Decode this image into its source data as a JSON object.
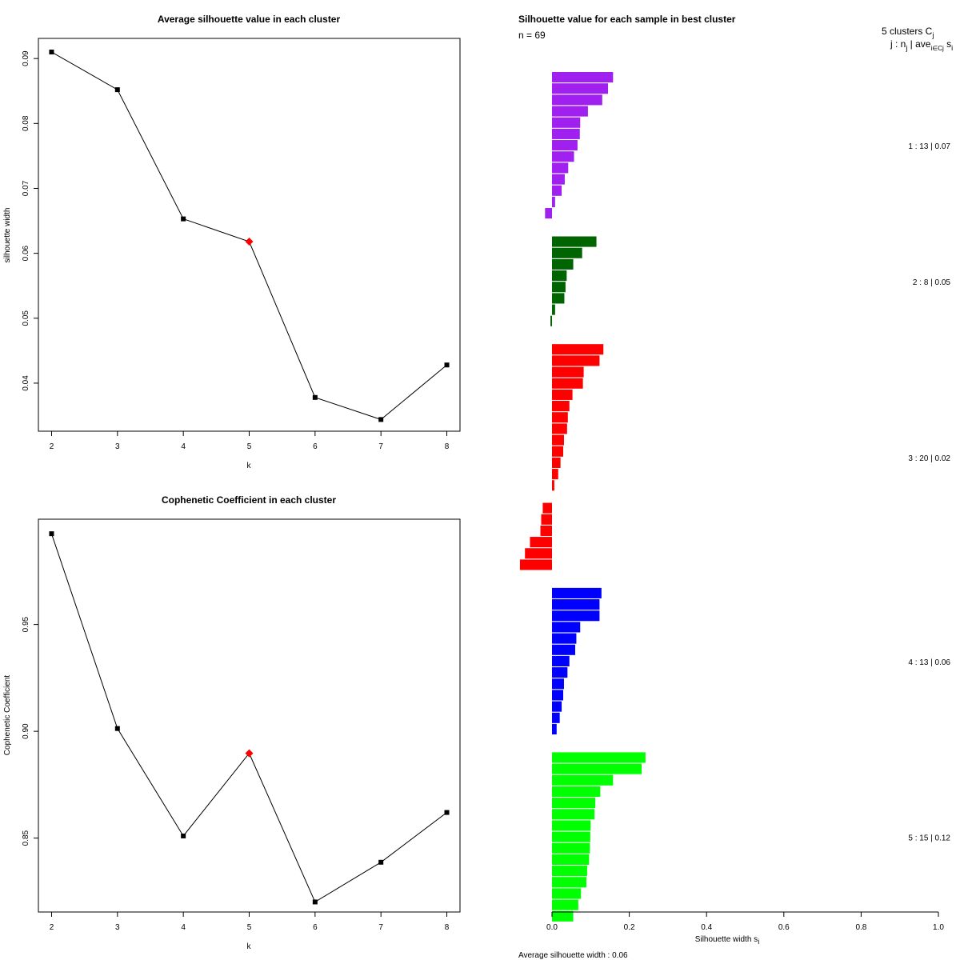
{
  "chart_data": [
    {
      "type": "line",
      "title": "Average silhouette value in each cluster",
      "xlabel": "k",
      "ylabel": "silhouette width",
      "x": [
        2,
        3,
        4,
        5,
        6,
        7,
        8
      ],
      "y": [
        0.091,
        0.0852,
        0.0653,
        0.0618,
        0.0378,
        0.0344,
        0.0428
      ],
      "highlight_k": 5,
      "highlight_color": "#ff0000",
      "xlim": [
        1.8,
        8.2
      ],
      "ylim": [
        0.0326,
        0.0931
      ],
      "xticks": [
        2,
        3,
        4,
        5,
        6,
        7,
        8
      ],
      "yticks": [
        0.04,
        0.05,
        0.06,
        0.07,
        0.08,
        0.09
      ],
      "ytick_labels": [
        "0.04",
        "0.05",
        "0.06",
        "0.07",
        "0.08",
        "0.09"
      ]
    },
    {
      "type": "line",
      "title": "Cophenetic Coefficient in each cluster",
      "xlabel": "k",
      "ylabel": "Cophenetic Coefficient",
      "x": [
        2,
        3,
        4,
        5,
        6,
        7,
        8
      ],
      "y": [
        0.9925,
        0.9013,
        0.851,
        0.8897,
        0.8201,
        0.8387,
        0.862
      ],
      "highlight_k": 5,
      "highlight_color": "#ff0000",
      "xlim": [
        1.8,
        8.2
      ],
      "ylim": [
        0.8154,
        0.9993
      ],
      "xticks": [
        2,
        3,
        4,
        5,
        6,
        7,
        8
      ],
      "yticks": [
        0.85,
        0.9,
        0.95
      ],
      "ytick_labels": [
        "0.85",
        "0.90",
        "0.95"
      ]
    },
    {
      "type": "bar",
      "orientation": "horizontal",
      "title": "Silhouette value for each sample in best cluster",
      "n_label": "n = 69",
      "legend_title": "5 clusters C",
      "legend_title_sub": "j",
      "legend_header": "j : n",
      "legend_header_sub": "j",
      "legend_header_tail": " | ave",
      "legend_header_tail_sub": "i∈Cj",
      "legend_header_end": " s",
      "legend_header_end_sub": "i",
      "xlabel": "Silhouette width s",
      "xlabel_sub": "i",
      "xlim": [
        0,
        1
      ],
      "xticks": [
        0.0,
        0.2,
        0.4,
        0.6,
        0.8,
        1.0
      ],
      "xtick_labels": [
        "0.0",
        "0.2",
        "0.4",
        "0.6",
        "0.8",
        "1.0"
      ],
      "footer": "Average silhouette width : 0.06",
      "clusters": [
        {
          "label": "1 :  13  |  0.07",
          "color": "#a020f0",
          "values": [
            0.158,
            0.145,
            0.13,
            0.093,
            0.073,
            0.072,
            0.066,
            0.057,
            0.042,
            0.033,
            0.025,
            0.008,
            -0.018
          ]
        },
        {
          "label": "2 :   8  |  0.05",
          "color": "#006400",
          "values": [
            0.115,
            0.078,
            0.055,
            0.038,
            0.035,
            0.032,
            0.008,
            -0.004
          ]
        },
        {
          "label": "3 :  20  |  0.02",
          "color": "#ff0000",
          "values": [
            0.133,
            0.123,
            0.082,
            0.08,
            0.053,
            0.045,
            0.041,
            0.039,
            0.031,
            0.029,
            0.022,
            0.016,
            0.006,
            0.0,
            -0.024,
            -0.028,
            -0.03,
            -0.057,
            -0.07,
            -0.083
          ]
        },
        {
          "label": "4 :  13  |  0.06",
          "color": "#0000ff",
          "values": [
            0.128,
            0.123,
            0.123,
            0.073,
            0.063,
            0.06,
            0.045,
            0.04,
            0.031,
            0.029,
            0.025,
            0.02,
            0.012
          ]
        },
        {
          "label": "5 :  15  |  0.12",
          "color": "#00ff00",
          "values": [
            0.242,
            0.232,
            0.158,
            0.125,
            0.112,
            0.11,
            0.1,
            0.099,
            0.098,
            0.096,
            0.091,
            0.089,
            0.075,
            0.068,
            0.055
          ]
        }
      ]
    }
  ]
}
